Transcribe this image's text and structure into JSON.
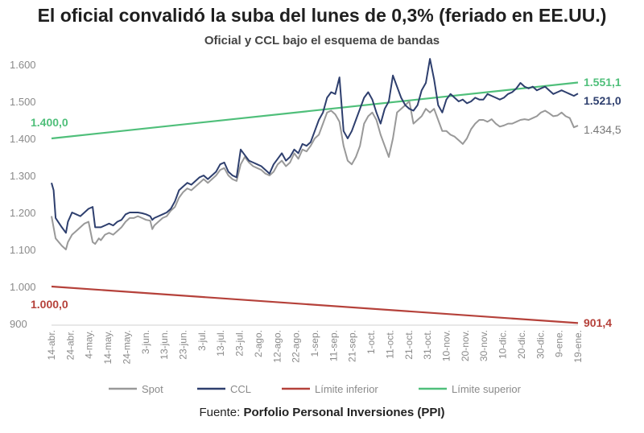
{
  "chart_data": {
    "type": "line",
    "title": "El oficial convalidó la suba del lunes de 0,3% (feriado en EE.UU.)",
    "subtitle": "Oficial y CCL bajo el esquema de bandas",
    "source_prefix": "Fuente: ",
    "source_name": "Porfolio Personal Inversiones (PPI)",
    "ylim": [
      900,
      1620
    ],
    "y_ticks": [
      "900",
      "1.000",
      "1.100",
      "1.200",
      "1.300",
      "1.400",
      "1.500",
      "1.600"
    ],
    "x_tick_labels": [
      "14-abr.",
      "24-abr.",
      "4-may.",
      "14-may.",
      "24-may.",
      "3-jun.",
      "13-jun.",
      "23-jun.",
      "3-jul.",
      "13-jul.",
      "23-jul.",
      "2-ago.",
      "12-ago.",
      "22-ago.",
      "1-sep.",
      "11-sep.",
      "21-sep.",
      "1-oct.",
      "11-oct.",
      "21-oct.",
      "31-oct.",
      "10-nov.",
      "20-nov.",
      "30-nov.",
      "10-dic.",
      "20-dic.",
      "30-dic.",
      "9-ene.",
      "19-ene."
    ],
    "series": [
      {
        "name": "Spot",
        "color": "#999999",
        "points": [
          [
            0,
            1190
          ],
          [
            1,
            1130
          ],
          [
            2.5,
            1110
          ],
          [
            3.5,
            1100
          ],
          [
            4,
            1120
          ],
          [
            5,
            1140
          ],
          [
            6,
            1150
          ],
          [
            7,
            1160
          ],
          [
            8,
            1170
          ],
          [
            9,
            1175
          ],
          [
            10,
            1120
          ],
          [
            10.6,
            1115
          ],
          [
            11.5,
            1130
          ],
          [
            12,
            1125
          ],
          [
            13,
            1140
          ],
          [
            14,
            1145
          ],
          [
            15,
            1140
          ],
          [
            16,
            1150
          ],
          [
            17,
            1160
          ],
          [
            18,
            1175
          ],
          [
            19,
            1185
          ],
          [
            20,
            1185
          ],
          [
            21,
            1190
          ],
          [
            22,
            1185
          ],
          [
            23,
            1180
          ],
          [
            24,
            1178
          ],
          [
            24.5,
            1155
          ],
          [
            25,
            1165
          ],
          [
            26,
            1175
          ],
          [
            27,
            1185
          ],
          [
            28,
            1190
          ],
          [
            29,
            1205
          ],
          [
            30,
            1215
          ],
          [
            31,
            1240
          ],
          [
            32,
            1255
          ],
          [
            33,
            1265
          ],
          [
            34,
            1260
          ],
          [
            35,
            1270
          ],
          [
            36,
            1280
          ],
          [
            37,
            1290
          ],
          [
            38,
            1280
          ],
          [
            39,
            1290
          ],
          [
            40,
            1300
          ],
          [
            41,
            1315
          ],
          [
            42,
            1320
          ],
          [
            43,
            1300
          ],
          [
            44,
            1290
          ],
          [
            45,
            1285
          ],
          [
            46,
            1330
          ],
          [
            47,
            1350
          ],
          [
            48,
            1335
          ],
          [
            49,
            1325
          ],
          [
            50,
            1320
          ],
          [
            51,
            1315
          ],
          [
            52,
            1305
          ],
          [
            53,
            1300
          ],
          [
            54,
            1310
          ],
          [
            55,
            1330
          ],
          [
            56,
            1340
          ],
          [
            57,
            1325
          ],
          [
            58,
            1335
          ],
          [
            59,
            1360
          ],
          [
            60,
            1345
          ],
          [
            61,
            1370
          ],
          [
            62,
            1365
          ],
          [
            63,
            1380
          ],
          [
            64,
            1400
          ],
          [
            65,
            1410
          ],
          [
            66,
            1440
          ],
          [
            67,
            1470
          ],
          [
            68,
            1475
          ],
          [
            69,
            1465
          ],
          [
            70,
            1445
          ],
          [
            71,
            1380
          ],
          [
            72,
            1340
          ],
          [
            73,
            1330
          ],
          [
            74,
            1350
          ],
          [
            75,
            1380
          ],
          [
            76,
            1440
          ],
          [
            77,
            1460
          ],
          [
            78,
            1470
          ],
          [
            79,
            1450
          ],
          [
            80,
            1410
          ],
          [
            81,
            1380
          ],
          [
            82,
            1350
          ],
          [
            83,
            1400
          ],
          [
            84,
            1470
          ],
          [
            85,
            1480
          ],
          [
            86,
            1490
          ],
          [
            87,
            1500
          ],
          [
            88,
            1440
          ],
          [
            89,
            1450
          ],
          [
            90,
            1460
          ],
          [
            91,
            1480
          ],
          [
            92,
            1470
          ],
          [
            93,
            1480
          ],
          [
            94,
            1450
          ],
          [
            95,
            1420
          ],
          [
            96,
            1420
          ],
          [
            97,
            1410
          ],
          [
            98,
            1405
          ],
          [
            99,
            1395
          ],
          [
            100,
            1385
          ],
          [
            101,
            1400
          ],
          [
            102,
            1425
          ],
          [
            103,
            1440
          ],
          [
            104,
            1450
          ],
          [
            105,
            1450
          ],
          [
            106,
            1445
          ],
          [
            107,
            1452
          ],
          [
            108,
            1440
          ],
          [
            109,
            1432
          ],
          [
            110,
            1435
          ],
          [
            111,
            1440
          ],
          [
            112,
            1440
          ],
          [
            113,
            1445
          ],
          [
            114,
            1450
          ],
          [
            115,
            1452
          ],
          [
            116,
            1450
          ],
          [
            117,
            1455
          ],
          [
            118,
            1460
          ],
          [
            119,
            1470
          ],
          [
            120,
            1475
          ],
          [
            121,
            1468
          ],
          [
            122,
            1460
          ],
          [
            123,
            1462
          ],
          [
            124,
            1470
          ],
          [
            125,
            1460
          ],
          [
            126,
            1455
          ],
          [
            127,
            1430
          ],
          [
            128,
            1434.5
          ]
        ]
      },
      {
        "name": "CCL",
        "color": "#2e3f6e",
        "points": [
          [
            0,
            1280
          ],
          [
            0.5,
            1260
          ],
          [
            1,
            1185
          ],
          [
            2.5,
            1160
          ],
          [
            3.5,
            1145
          ],
          [
            4,
            1175
          ],
          [
            5,
            1200
          ],
          [
            6,
            1195
          ],
          [
            7,
            1190
          ],
          [
            8,
            1200
          ],
          [
            9,
            1210
          ],
          [
            10,
            1215
          ],
          [
            10.6,
            1160
          ],
          [
            11,
            1160
          ],
          [
            12,
            1160
          ],
          [
            13,
            1165
          ],
          [
            14,
            1170
          ],
          [
            15,
            1165
          ],
          [
            16,
            1175
          ],
          [
            17,
            1180
          ],
          [
            18,
            1195
          ],
          [
            19,
            1200
          ],
          [
            20,
            1200
          ],
          [
            21,
            1200
          ],
          [
            22,
            1198
          ],
          [
            23,
            1195
          ],
          [
            24,
            1190
          ],
          [
            24.5,
            1180
          ],
          [
            25,
            1185
          ],
          [
            26,
            1190
          ],
          [
            27,
            1195
          ],
          [
            28,
            1200
          ],
          [
            29,
            1210
          ],
          [
            30,
            1230
          ],
          [
            31,
            1260
          ],
          [
            32,
            1270
          ],
          [
            33,
            1280
          ],
          [
            34,
            1275
          ],
          [
            35,
            1285
          ],
          [
            36,
            1295
          ],
          [
            37,
            1300
          ],
          [
            38,
            1290
          ],
          [
            39,
            1300
          ],
          [
            40,
            1310
          ],
          [
            41,
            1330
          ],
          [
            42,
            1335
          ],
          [
            43,
            1310
          ],
          [
            44,
            1300
          ],
          [
            45,
            1295
          ],
          [
            46,
            1370
          ],
          [
            47,
            1355
          ],
          [
            48,
            1340
          ],
          [
            49,
            1335
          ],
          [
            50,
            1330
          ],
          [
            51,
            1325
          ],
          [
            52,
            1315
          ],
          [
            53,
            1305
          ],
          [
            54,
            1330
          ],
          [
            55,
            1345
          ],
          [
            56,
            1360
          ],
          [
            57,
            1340
          ],
          [
            58,
            1350
          ],
          [
            59,
            1370
          ],
          [
            60,
            1360
          ],
          [
            61,
            1385
          ],
          [
            62,
            1380
          ],
          [
            63,
            1390
          ],
          [
            64,
            1420
          ],
          [
            65,
            1450
          ],
          [
            66,
            1470
          ],
          [
            67,
            1510
          ],
          [
            68,
            1525
          ],
          [
            69,
            1520
          ],
          [
            70,
            1565
          ],
          [
            71,
            1420
          ],
          [
            72,
            1400
          ],
          [
            73,
            1420
          ],
          [
            74,
            1450
          ],
          [
            75,
            1480
          ],
          [
            76,
            1510
          ],
          [
            77,
            1525
          ],
          [
            78,
            1505
          ],
          [
            79,
            1470
          ],
          [
            80,
            1440
          ],
          [
            81,
            1480
          ],
          [
            82,
            1500
          ],
          [
            83,
            1570
          ],
          [
            84,
            1540
          ],
          [
            85,
            1510
          ],
          [
            86,
            1490
          ],
          [
            87,
            1480
          ],
          [
            88,
            1475
          ],
          [
            89,
            1490
          ],
          [
            90,
            1530
          ],
          [
            91,
            1550
          ],
          [
            92,
            1615
          ],
          [
            93,
            1560
          ],
          [
            94,
            1490
          ],
          [
            95,
            1470
          ],
          [
            96,
            1505
          ],
          [
            97,
            1520
          ],
          [
            98,
            1510
          ],
          [
            99,
            1500
          ],
          [
            100,
            1505
          ],
          [
            101,
            1495
          ],
          [
            102,
            1500
          ],
          [
            103,
            1510
          ],
          [
            104,
            1505
          ],
          [
            105,
            1505
          ],
          [
            106,
            1520
          ],
          [
            107,
            1515
          ],
          [
            108,
            1510
          ],
          [
            109,
            1505
          ],
          [
            110,
            1510
          ],
          [
            111,
            1520
          ],
          [
            112,
            1525
          ],
          [
            113,
            1535
          ],
          [
            114,
            1550
          ],
          [
            115,
            1540
          ],
          [
            116,
            1535
          ],
          [
            117,
            1540
          ],
          [
            118,
            1530
          ],
          [
            119,
            1535
          ],
          [
            120,
            1540
          ],
          [
            121,
            1530
          ],
          [
            122,
            1520
          ],
          [
            123,
            1525
          ],
          [
            124,
            1530
          ],
          [
            125,
            1525
          ],
          [
            126,
            1520
          ],
          [
            127,
            1515
          ],
          [
            128,
            1521
          ]
        ]
      },
      {
        "name": "Límite inferior",
        "color": "#b5413a",
        "points": [
          [
            0,
            1000
          ],
          [
            128,
            901.4
          ]
        ]
      },
      {
        "name": "Límite superior",
        "color": "#4fbf7a",
        "points": [
          [
            0,
            1400
          ],
          [
            128,
            1551.1
          ]
        ]
      }
    ],
    "annotations": {
      "start_superior": "1.400,0",
      "start_inferior": "1.000,0",
      "end_superior": "1.551,1",
      "end_ccl": "1.521,0",
      "end_spot": "1.434,5",
      "end_inferior": "901,4"
    }
  }
}
